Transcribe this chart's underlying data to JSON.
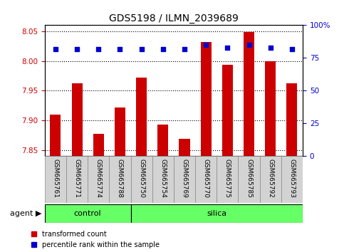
{
  "title": "GDS5198 / ILMN_2039689",
  "samples": [
    "GSM665761",
    "GSM665771",
    "GSM665774",
    "GSM665788",
    "GSM665750",
    "GSM665754",
    "GSM665769",
    "GSM665770",
    "GSM665775",
    "GSM665785",
    "GSM665792",
    "GSM665793"
  ],
  "bar_values": [
    7.91,
    7.962,
    7.878,
    7.922,
    7.972,
    7.893,
    7.869,
    8.032,
    7.993,
    8.048,
    8.0,
    7.962
  ],
  "percentile_values": [
    82,
    82,
    82,
    82,
    82,
    82,
    82,
    85,
    83,
    85,
    83,
    82
  ],
  "ylim_left": [
    7.84,
    8.06
  ],
  "ylim_right": [
    0,
    100
  ],
  "yticks_left": [
    7.85,
    7.9,
    7.95,
    8.0,
    8.05
  ],
  "yticks_right": [
    0,
    25,
    50,
    75,
    100
  ],
  "ytick_labels_right": [
    "0",
    "25",
    "50",
    "75",
    "100%"
  ],
  "bar_color": "#cc0000",
  "dot_color": "#0000cc",
  "n_control": 4,
  "n_silica": 8,
  "control_label": "control",
  "silica_label": "silica",
  "group_color": "#66ff66",
  "agent_label": "agent",
  "legend_bar_label": "transformed count",
  "legend_dot_label": "percentile rank within the sample",
  "tick_bg_color": "#d3d3d3",
  "fig_bg": "#ffffff"
}
